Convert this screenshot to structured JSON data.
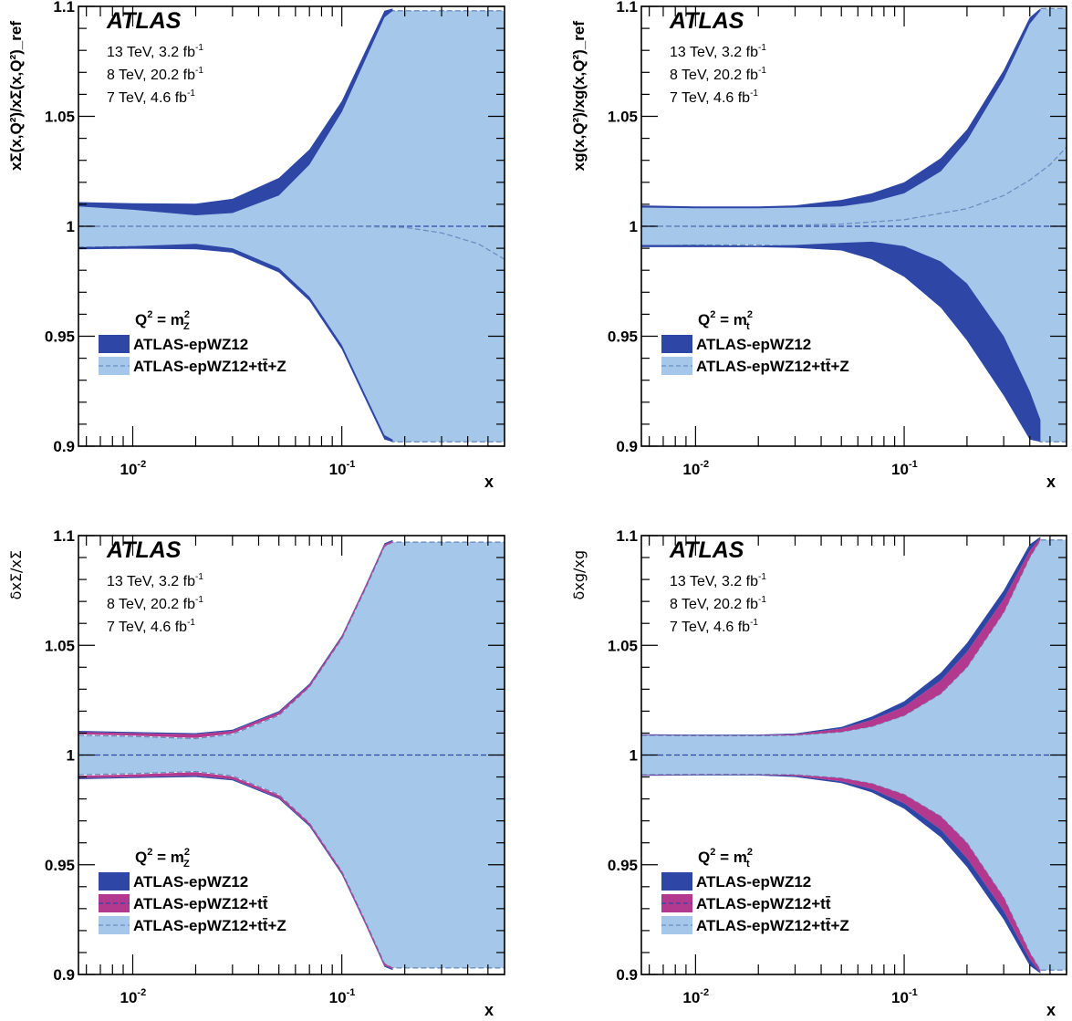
{
  "colors": {
    "light_band": "#a5c8ea",
    "light_edge": "#6a8fc0",
    "dark_band": "#2e47a6",
    "pink_band": "#b3398f",
    "ref_line": "#2e47a6",
    "frame": "#000000"
  },
  "chart_data": [
    {
      "id": "sigma_ratio",
      "type": "area",
      "ylabel": "xΣ(x,Q²)/xΣ(x,Q²)_ref",
      "xlabel": "x",
      "xscale": "log",
      "xlim": [
        0.0055,
        0.6
      ],
      "ylim": [
        0.9,
        1.1
      ],
      "y_ticks": [
        "0.9",
        "0.95",
        "1",
        "1.05",
        "1.1"
      ],
      "x_ticks": [
        "10-2",
        "10-1"
      ],
      "atlas_label": "ATLAS",
      "info_lines": [
        "13 TeV, 3.2 fb-1",
        "8 TeV, 20.2 fb-1",
        "7 TeV, 4.6 fb-1"
      ],
      "legend_header": "Q² = m²_Z",
      "legend": [
        "ATLAS-epWZ12",
        "ATLAS-epWZ12+tt̄+Z"
      ],
      "series": [
        {
          "name": "ATLAS-epWZ12+tt̄+Z",
          "x": [
            0.0055,
            0.01,
            0.02,
            0.03,
            0.05,
            0.07,
            0.1,
            0.13,
            0.16,
            0.175,
            0.2,
            0.3,
            0.6
          ],
          "upper": [
            1.0095,
            1.0092,
            1.009,
            1.011,
            1.02,
            1.033,
            1.055,
            1.078,
            1.096,
            1.098,
            1.098,
            1.098,
            1.098
          ],
          "lower": [
            0.9905,
            0.9908,
            0.991,
            0.989,
            0.98,
            0.967,
            0.945,
            0.922,
            0.904,
            0.902,
            0.902,
            0.902,
            0.902
          ],
          "central_x": [
            0.0055,
            0.1,
            0.2,
            0.3,
            0.45,
            0.6
          ],
          "central": [
            1.0,
            1.0,
            0.9995,
            0.997,
            0.992,
            0.985
          ]
        },
        {
          "name": "ATLAS-epWZ12",
          "x": [
            0.0055,
            0.01,
            0.02,
            0.03,
            0.05,
            0.07,
            0.1,
            0.13,
            0.16,
            0.175
          ],
          "upper_hi": [
            1.011,
            1.0105,
            1.0103,
            1.0125,
            1.022,
            1.035,
            1.057,
            1.08,
            1.098,
            1.099
          ],
          "upper_lo": [
            1.009,
            1.0075,
            1.005,
            1.006,
            1.014,
            1.028,
            1.052,
            1.076,
            1.095,
            1.098
          ],
          "lower_hi": [
            0.9905,
            0.991,
            0.992,
            0.99,
            0.981,
            0.968,
            0.946,
            0.923,
            0.905,
            0.903
          ],
          "lower_lo": [
            0.9895,
            0.9898,
            0.9895,
            0.988,
            0.979,
            0.966,
            0.944,
            0.921,
            0.903,
            0.902
          ]
        }
      ]
    },
    {
      "id": "gluon_ratio",
      "type": "area",
      "ylabel": "xg(x,Q²)/xg(x,Q²)_ref",
      "xlabel": "x",
      "xscale": "log",
      "xlim": [
        0.0055,
        0.6
      ],
      "ylim": [
        0.9,
        1.1
      ],
      "y_ticks": [
        "0.9",
        "0.95",
        "1",
        "1.05",
        "1.1"
      ],
      "x_ticks": [
        "10-2",
        "10-1"
      ],
      "atlas_label": "ATLAS",
      "info_lines": [
        "13 TeV, 3.2 fb-1",
        "8 TeV, 20.2 fb-1",
        "7 TeV, 4.6 fb-1"
      ],
      "legend_header": "Q² = m²_t",
      "legend": [
        "ATLAS-epWZ12",
        "ATLAS-epWZ12+tt̄+Z"
      ],
      "series": [
        {
          "name": "ATLAS-epWZ12+tt̄+Z",
          "x": [
            0.0055,
            0.01,
            0.02,
            0.03,
            0.05,
            0.07,
            0.1,
            0.15,
            0.2,
            0.3,
            0.4,
            0.45,
            0.6
          ],
          "upper": [
            1.009,
            1.0085,
            1.0085,
            1.009,
            1.011,
            1.014,
            1.019,
            1.03,
            1.043,
            1.07,
            1.094,
            1.099,
            1.099
          ],
          "lower": [
            0.991,
            0.9915,
            0.9915,
            0.991,
            0.99,
            0.986,
            0.979,
            0.966,
            0.95,
            0.925,
            0.905,
            0.902,
            0.902
          ],
          "central_x": [
            0.0055,
            0.03,
            0.05,
            0.1,
            0.2,
            0.3,
            0.4,
            0.5,
            0.6
          ],
          "central": [
            1.0,
            1.0005,
            1.001,
            1.003,
            1.008,
            1.014,
            1.021,
            1.028,
            1.036
          ]
        },
        {
          "name": "ATLAS-epWZ12",
          "x": [
            0.0055,
            0.01,
            0.02,
            0.03,
            0.05,
            0.07,
            0.1,
            0.15,
            0.2,
            0.3,
            0.4,
            0.45
          ],
          "upper_hi": [
            1.0095,
            1.009,
            1.009,
            1.0095,
            1.012,
            1.015,
            1.02,
            1.031,
            1.044,
            1.071,
            1.095,
            1.099
          ],
          "upper_lo": [
            1.0085,
            1.0082,
            1.0082,
            1.0085,
            1.009,
            1.011,
            1.015,
            1.025,
            1.039,
            1.067,
            1.092,
            1.098
          ],
          "lower_hi": [
            0.9915,
            0.9915,
            0.9912,
            0.9915,
            0.9925,
            0.993,
            0.991,
            0.984,
            0.974,
            0.95,
            0.925,
            0.912
          ],
          "lower_lo": [
            0.9905,
            0.9905,
            0.9905,
            0.9902,
            0.989,
            0.985,
            0.977,
            0.963,
            0.948,
            0.923,
            0.903,
            0.902
          ]
        }
      ]
    },
    {
      "id": "sigma_uncertainty",
      "type": "area",
      "ylabel": "δxΣ/xΣ",
      "xlabel": "x",
      "xscale": "log",
      "xlim": [
        0.0055,
        0.6
      ],
      "ylim": [
        0.9,
        1.1
      ],
      "y_ticks": [
        "0.9",
        "0.95",
        "1",
        "1.05",
        "1.1"
      ],
      "x_ticks": [
        "10-2",
        "10-1"
      ],
      "atlas_label": "ATLAS",
      "info_lines": [
        "13 TeV, 3.2 fb-1",
        "8 TeV, 20.2 fb-1",
        "7 TeV, 4.6 fb-1"
      ],
      "legend_header": "Q² = m²_Z",
      "legend": [
        "ATLAS-epWZ12",
        "ATLAS-epWZ12+tt̄",
        "ATLAS-epWZ12+tt̄+Z"
      ],
      "series": [
        {
          "name": "ATLAS-epWZ12+tt̄+Z",
          "x": [
            0.0055,
            0.01,
            0.02,
            0.03,
            0.05,
            0.07,
            0.1,
            0.13,
            0.16,
            0.175,
            0.2,
            0.3,
            0.6
          ],
          "upper": [
            1.009,
            1.0085,
            1.0075,
            1.0095,
            1.018,
            1.031,
            1.053,
            1.076,
            1.095,
            1.097,
            1.097,
            1.097,
            1.097
          ],
          "lower": [
            0.991,
            0.9915,
            0.9925,
            0.9905,
            0.982,
            0.969,
            0.947,
            0.924,
            0.905,
            0.903,
            0.903,
            0.903,
            0.903
          ],
          "central_x": [
            0.0055,
            0.6
          ],
          "central": [
            1.0,
            1.0
          ]
        },
        {
          "name": "ATLAS-epWZ12+tt̄",
          "x": [
            0.0055,
            0.01,
            0.02,
            0.03,
            0.05,
            0.07,
            0.1,
            0.13,
            0.16,
            0.175
          ],
          "upper_hi": [
            1.0105,
            1.01,
            1.0095,
            1.011,
            1.0195,
            1.032,
            1.054,
            1.077,
            1.096,
            1.0975
          ],
          "upper_lo": [
            1.0095,
            1.0088,
            1.0078,
            1.0098,
            1.0183,
            1.031,
            1.053,
            1.076,
            1.095,
            1.097
          ],
          "lower_hi": [
            0.9905,
            0.9912,
            0.9922,
            0.9902,
            0.9817,
            0.969,
            0.947,
            0.924,
            0.905,
            0.903
          ],
          "lower_lo": [
            0.9895,
            0.99,
            0.9905,
            0.989,
            0.9805,
            0.968,
            0.946,
            0.923,
            0.904,
            0.9025
          ]
        },
        {
          "name": "ATLAS-epWZ12",
          "x": [
            0.0055,
            0.01,
            0.02,
            0.03,
            0.05,
            0.07,
            0.1,
            0.13,
            0.16,
            0.175
          ],
          "upper_hi": [
            1.011,
            1.0105,
            1.01,
            1.0115,
            1.02,
            1.0325,
            1.0545,
            1.0775,
            1.0965,
            1.098
          ],
          "upper_lo": [
            1.0105,
            1.01,
            1.0095,
            1.011,
            1.0195,
            1.032,
            1.054,
            1.077,
            1.096,
            1.0975
          ],
          "lower_hi": [
            0.9895,
            0.99,
            0.9905,
            0.989,
            0.9805,
            0.968,
            0.946,
            0.923,
            0.904,
            0.9025
          ],
          "lower_lo": [
            0.989,
            0.9895,
            0.99,
            0.9885,
            0.98,
            0.9675,
            0.9455,
            0.9225,
            0.9035,
            0.902
          ]
        }
      ]
    },
    {
      "id": "gluon_uncertainty",
      "type": "area",
      "ylabel": "δxg/xg",
      "xlabel": "x",
      "xscale": "log",
      "xlim": [
        0.0055,
        0.6
      ],
      "ylim": [
        0.9,
        1.1
      ],
      "y_ticks": [
        "0.9",
        "0.95",
        "1",
        "1.05",
        "1.1"
      ],
      "x_ticks": [
        "10-2",
        "10-1"
      ],
      "atlas_label": "ATLAS",
      "info_lines": [
        "13 TeV, 3.2 fb-1",
        "8 TeV, 20.2 fb-1",
        "7 TeV, 4.6 fb-1"
      ],
      "legend_header": "Q² = m²_t",
      "legend": [
        "ATLAS-epWZ12",
        "ATLAS-epWZ12+tt̄",
        "ATLAS-epWZ12+tt̄+Z"
      ],
      "series": [
        {
          "name": "ATLAS-epWZ12+tt̄+Z",
          "x": [
            0.0055,
            0.01,
            0.02,
            0.03,
            0.05,
            0.07,
            0.1,
            0.15,
            0.2,
            0.3,
            0.4,
            0.45,
            0.6
          ],
          "upper": [
            1.009,
            1.0088,
            1.0088,
            1.009,
            1.0105,
            1.013,
            1.018,
            1.028,
            1.04,
            1.065,
            1.09,
            1.098,
            1.098
          ],
          "lower": [
            0.991,
            0.9912,
            0.9912,
            0.991,
            0.9895,
            0.987,
            0.982,
            0.972,
            0.96,
            0.935,
            0.91,
            0.902,
            0.902
          ],
          "central_x": [
            0.0055,
            0.6
          ],
          "central": [
            1.0,
            1.0
          ]
        },
        {
          "name": "ATLAS-epWZ12+tt̄",
          "x": [
            0.0055,
            0.01,
            0.02,
            0.03,
            0.05,
            0.07,
            0.1,
            0.15,
            0.2,
            0.3,
            0.4,
            0.45
          ],
          "upper_hi": [
            1.0092,
            1.009,
            1.009,
            1.0095,
            1.012,
            1.016,
            1.022,
            1.034,
            1.047,
            1.071,
            1.093,
            1.099
          ],
          "upper_lo": [
            1.009,
            1.0088,
            1.0088,
            1.009,
            1.0105,
            1.013,
            1.018,
            1.028,
            1.04,
            1.065,
            1.09,
            1.098
          ],
          "lower_hi": [
            0.991,
            0.9912,
            0.9912,
            0.991,
            0.9895,
            0.987,
            0.982,
            0.972,
            0.96,
            0.935,
            0.91,
            0.902
          ],
          "lower_lo": [
            0.9908,
            0.991,
            0.991,
            0.9905,
            0.988,
            0.9845,
            0.978,
            0.966,
            0.953,
            0.929,
            0.907,
            0.901
          ]
        },
        {
          "name": "ATLAS-epWZ12",
          "x": [
            0.0055,
            0.01,
            0.02,
            0.03,
            0.05,
            0.07,
            0.1,
            0.15,
            0.2,
            0.3,
            0.4,
            0.45
          ],
          "upper_hi": [
            1.0095,
            1.0093,
            1.0093,
            1.0098,
            1.0128,
            1.0175,
            1.0245,
            1.0375,
            1.051,
            1.075,
            1.096,
            1.0995
          ],
          "upper_lo": [
            1.0092,
            1.009,
            1.009,
            1.0095,
            1.012,
            1.016,
            1.022,
            1.034,
            1.047,
            1.071,
            1.093,
            1.099
          ],
          "lower_hi": [
            0.9908,
            0.991,
            0.991,
            0.9905,
            0.988,
            0.9845,
            0.978,
            0.966,
            0.953,
            0.929,
            0.907,
            0.901
          ],
          "lower_lo": [
            0.9905,
            0.9907,
            0.9907,
            0.99,
            0.9872,
            0.983,
            0.9755,
            0.9625,
            0.949,
            0.925,
            0.904,
            0.9005
          ]
        }
      ]
    }
  ]
}
